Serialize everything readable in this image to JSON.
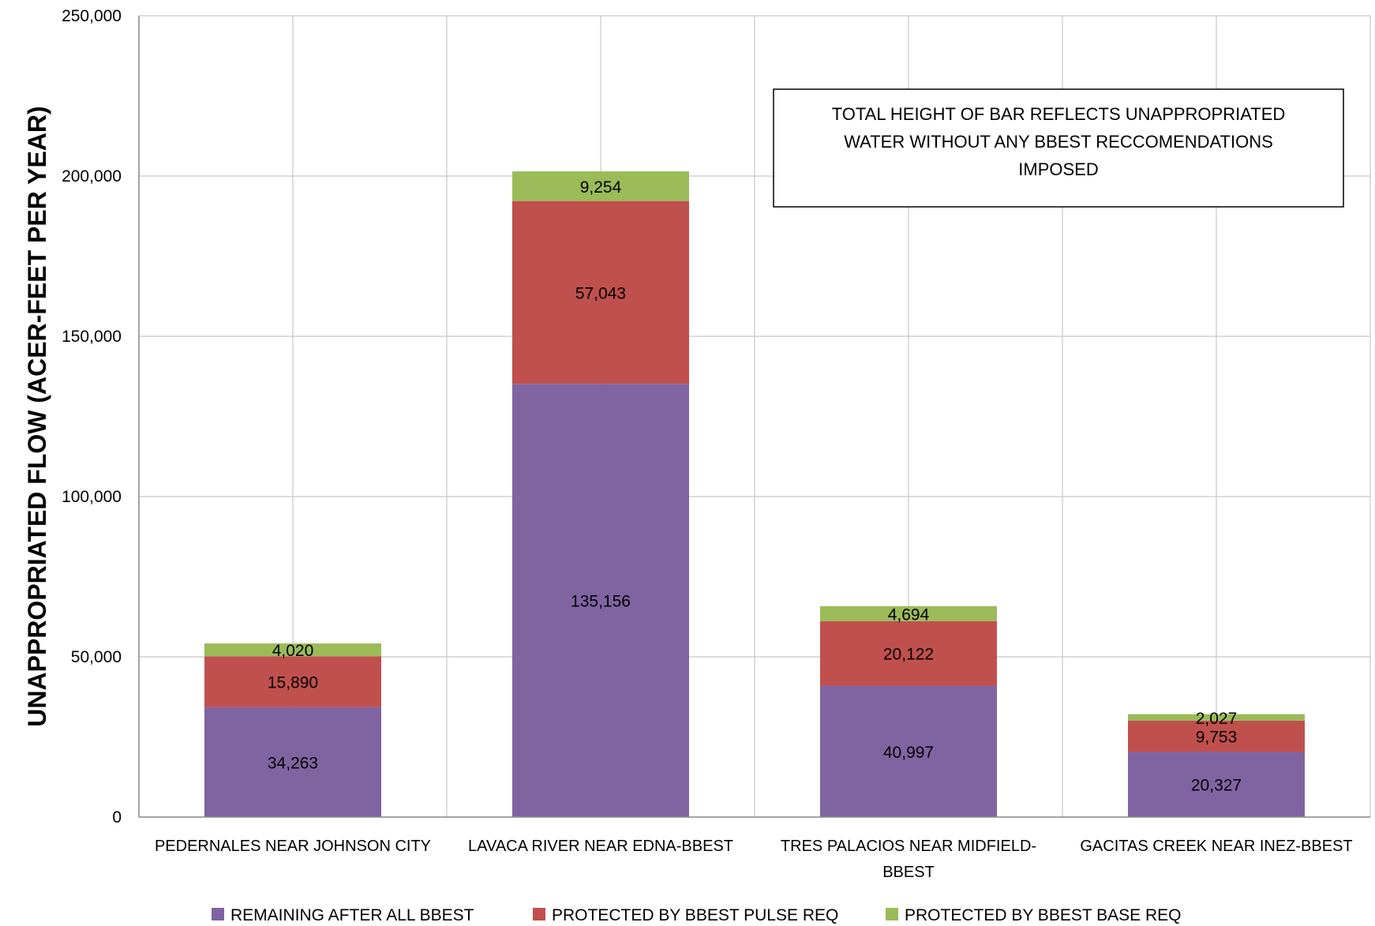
{
  "chart_data": {
    "type": "bar",
    "stacked": true,
    "title": "",
    "xlabel": "",
    "ylabel": "UNAPPROPRIATED FLOW (ACER-FEET PER YEAR)",
    "ylim": [
      0,
      250000
    ],
    "yticks": [
      0,
      50000,
      100000,
      150000,
      200000,
      250000
    ],
    "ytick_labels": [
      "0",
      "50,000",
      "100,000",
      "150,000",
      "200,000",
      "250,000"
    ],
    "grid": true,
    "categories": [
      [
        "PEDERNALES NEAR JOHNSON CITY"
      ],
      [
        "LAVACA RIVER NEAR EDNA-BBEST"
      ],
      [
        "TRES PALACIOS NEAR MIDFIELD-",
        "BBEST"
      ],
      [
        "GACITAS CREEK NEAR INEZ-BBEST"
      ]
    ],
    "series": [
      {
        "name": "REMAINING AFTER ALL BBEST",
        "color": "#8064A2",
        "values": [
          34263,
          135156,
          40997,
          20327
        ],
        "labels": [
          "34,263",
          "135,156",
          "40,997",
          "20,327"
        ]
      },
      {
        "name": "PROTECTED BY BBEST PULSE REQ",
        "color": "#C0504D",
        "values": [
          15890,
          57043,
          20122,
          9753
        ],
        "labels": [
          "15,890",
          "57,043",
          "20,122",
          "9,753"
        ]
      },
      {
        "name": "PROTECTED BY BBEST BASE  REQ",
        "color": "#9BBB59",
        "values": [
          4020,
          9254,
          4694,
          2027
        ],
        "labels": [
          "4,020",
          "9,254",
          "4,694",
          "2,027"
        ]
      }
    ],
    "annotation": [
      "TOTAL HEIGHT OF BAR REFLECTS UNAPPROPRIATED",
      "WATER WITHOUT ANY BBEST RECCOMENDATIONS",
      "IMPOSED"
    ],
    "legend_position": "bottom"
  }
}
